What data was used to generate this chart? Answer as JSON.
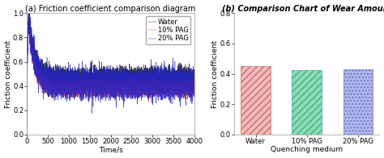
{
  "left_plot": {
    "title": "(a) Friction coefficient comparison diagram",
    "xlabel": "Time/s",
    "ylabel": "Friction coefficient",
    "xlim": [
      0,
      4000
    ],
    "ylim": [
      0.0,
      1.0
    ],
    "xticks": [
      0,
      500,
      1000,
      1500,
      2000,
      2500,
      3000,
      3500,
      4000
    ],
    "yticks": [
      0.0,
      0.2,
      0.4,
      0.6,
      0.8,
      1.0
    ],
    "lines": [
      {
        "label": "Water",
        "color": "#111111",
        "noise_level": 0.04,
        "base": 0.46,
        "peak": 0.96,
        "peak_time": 40,
        "decay_tau": 150
      },
      {
        "label": "10% PAG",
        "color": "#cc3333",
        "noise_level": 0.03,
        "base": 0.38,
        "peak": 0.93,
        "peak_time": 35,
        "decay_tau": 140
      },
      {
        "label": "20% PAG",
        "color": "#2222cc",
        "noise_level": 0.055,
        "base": 0.42,
        "peak": 0.94,
        "peak_time": 38,
        "decay_tau": 145
      }
    ],
    "legend_loc": "upper right"
  },
  "right_plot": {
    "title": "(b) Comparison Chart of Wear Amount",
    "xlabel": "Quenching medium",
    "ylabel": "Friction coefficient",
    "ylim": [
      0.0,
      0.8
    ],
    "yticks": [
      0.0,
      0.2,
      0.4,
      0.6,
      0.8
    ],
    "categories": [
      "Water",
      "10% PAG",
      "20% PAG"
    ],
    "values": [
      0.453,
      0.425,
      0.43
    ],
    "bar_colors": [
      "#f5b8b8",
      "#88ddb8",
      "#b0b8ee"
    ],
    "bar_edge_colors": [
      "#c07070",
      "#50aa80",
      "#7078c0"
    ],
    "hatch": [
      "////",
      "////",
      "...."
    ]
  },
  "figure_bg": "#ffffff",
  "label_fontsize": 6.5,
  "tick_fontsize": 6.0,
  "title_fontsize": 7.0,
  "legend_fontsize": 6.0
}
